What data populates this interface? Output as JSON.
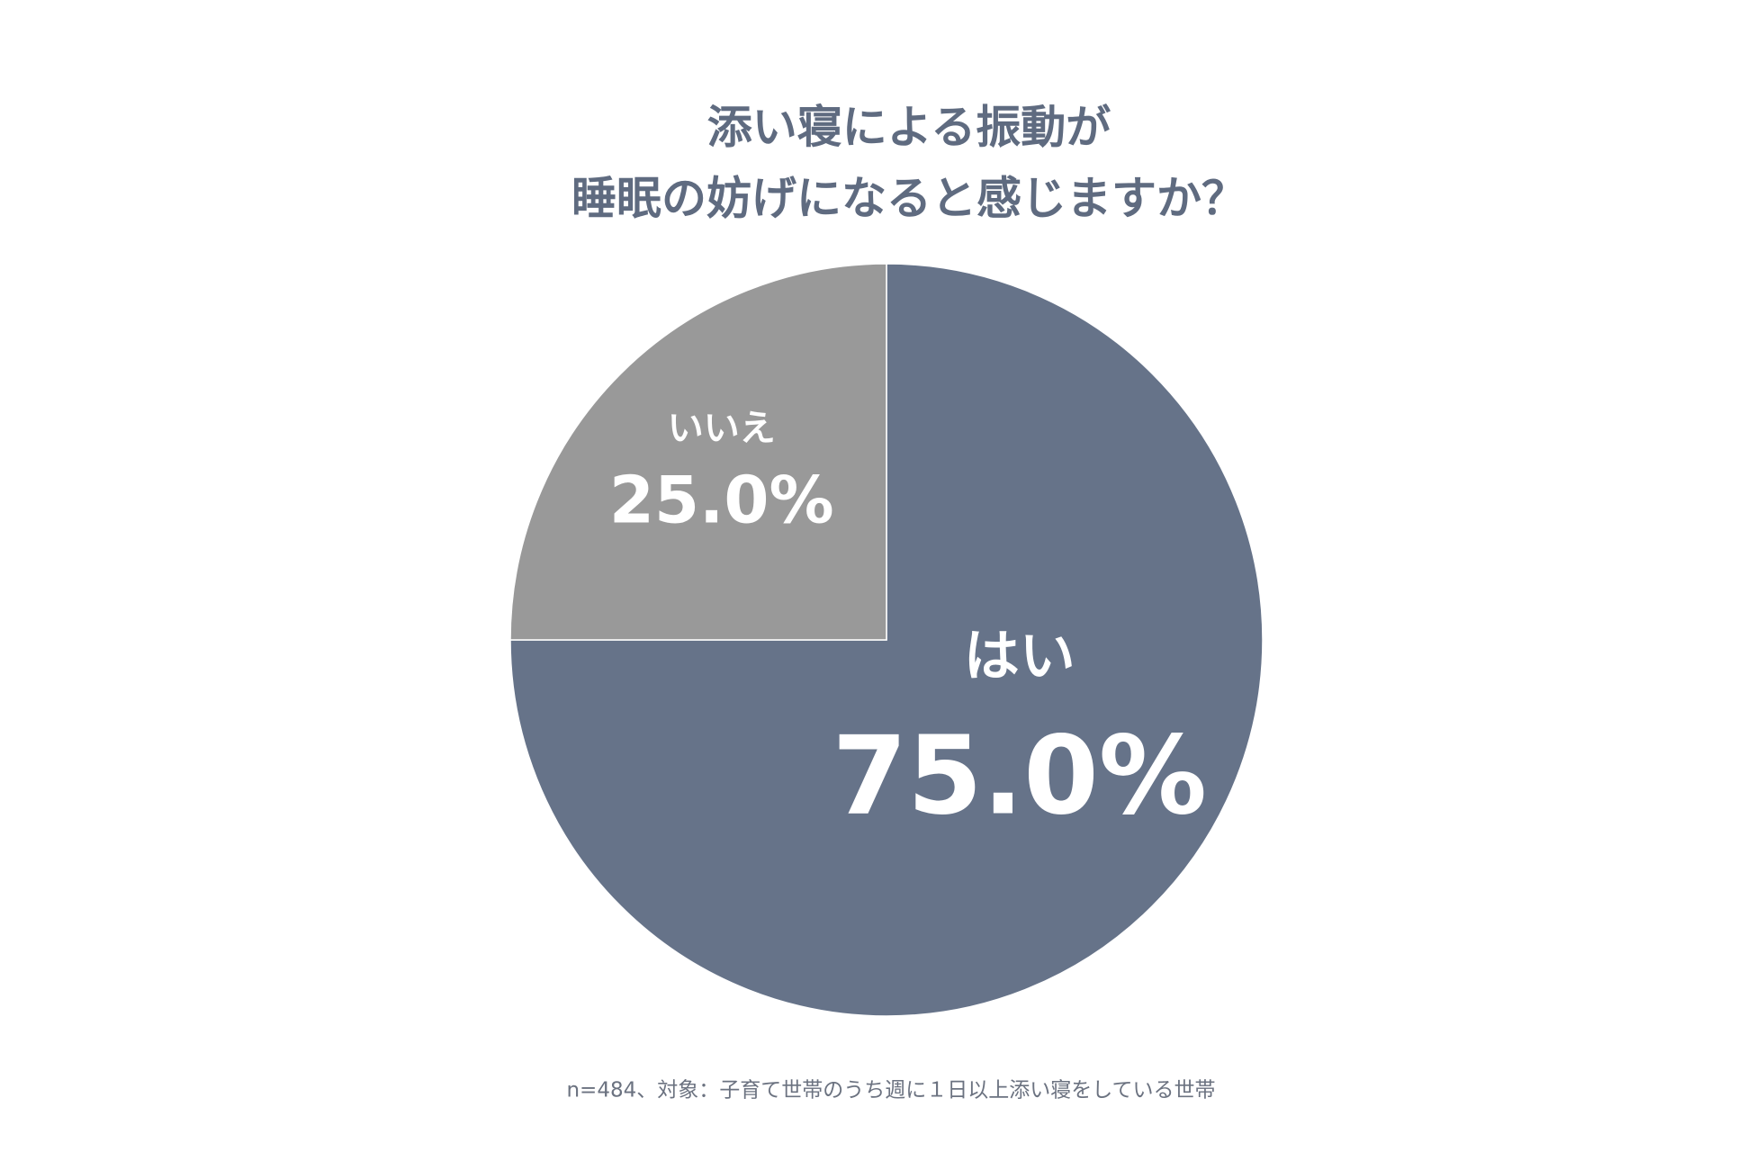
{
  "chart_data": {
    "type": "pie",
    "title": [
      "添い寝による振動が",
      "睡眠の妨げになると感じますか？"
    ],
    "categories": [
      "はい",
      "いいえ"
    ],
    "values": [
      75,
      25
    ],
    "value_labels": [
      "75.0%",
      "25.0%"
    ],
    "colors": [
      "#667389",
      "#999999"
    ],
    "note": "n=484、対象：子育て世帯のうち週に１日以上添い寝をしている世帯"
  }
}
